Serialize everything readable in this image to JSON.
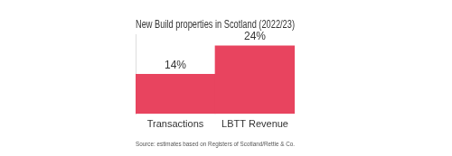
{
  "chart_data": {
    "type": "bar",
    "title": "New Build properties in Scotland (2022/23)",
    "source": "Source: estimates based on Registers of Scotland/Rettie & Co.",
    "categories": [
      "Transactions",
      "LBTT Revenue"
    ],
    "values": [
      14,
      24
    ],
    "value_labels": [
      "14%",
      "24%"
    ],
    "data_labels": true,
    "color": "#e8445f",
    "ylim": [
      0,
      28
    ],
    "tick_labels": "x",
    "grid": false
  }
}
